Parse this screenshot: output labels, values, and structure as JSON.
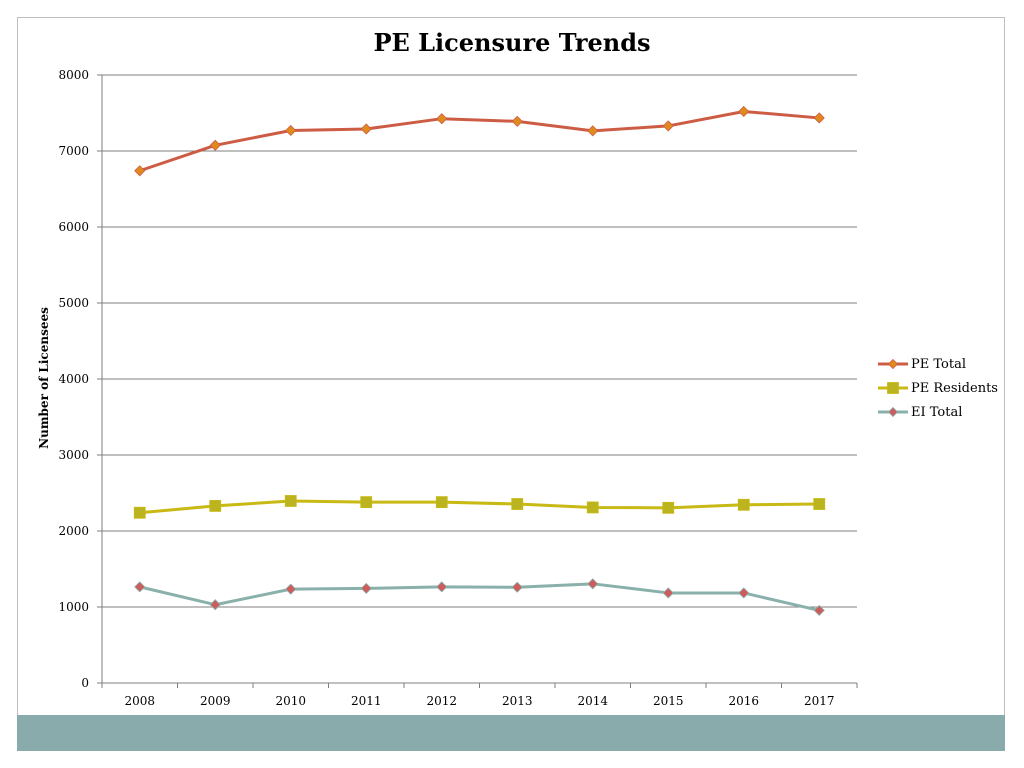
{
  "chart_data": {
    "type": "line",
    "title": "PE Licensure Trends",
    "xlabel": "",
    "ylabel": "Number of Licensees",
    "categories": [
      "2008",
      "2009",
      "2010",
      "2011",
      "2012",
      "2013",
      "2014",
      "2015",
      "2016",
      "2017"
    ],
    "ylim": [
      0,
      8000
    ],
    "yticks": [
      0,
      1000,
      2000,
      3000,
      4000,
      5000,
      6000,
      7000,
      8000
    ],
    "grid": true,
    "legend_position": "right",
    "series": [
      {
        "name": "PE Total",
        "color": "#cd5c45",
        "marker_color": "#e08a1e",
        "marker": "diamond",
        "values": [
          6740,
          7075,
          7270,
          7290,
          7425,
          7390,
          7265,
          7330,
          7520,
          7435
        ]
      },
      {
        "name": "PE Residents",
        "color": "#c8b914",
        "marker_color": "#bcb41f",
        "marker": "square",
        "values": [
          2240,
          2330,
          2395,
          2380,
          2380,
          2355,
          2310,
          2305,
          2345,
          2355
        ]
      },
      {
        "name": "EI Total",
        "color": "#8ab0ab",
        "marker_color": "#cd5c5c",
        "marker": "diamond",
        "values": [
          1265,
          1030,
          1235,
          1245,
          1265,
          1260,
          1305,
          1185,
          1185,
          955
        ]
      }
    ]
  },
  "colors": {
    "footer_band": "#8aabab",
    "gridline": "#7f7f7f",
    "frame_border": "#bfbfbf"
  }
}
